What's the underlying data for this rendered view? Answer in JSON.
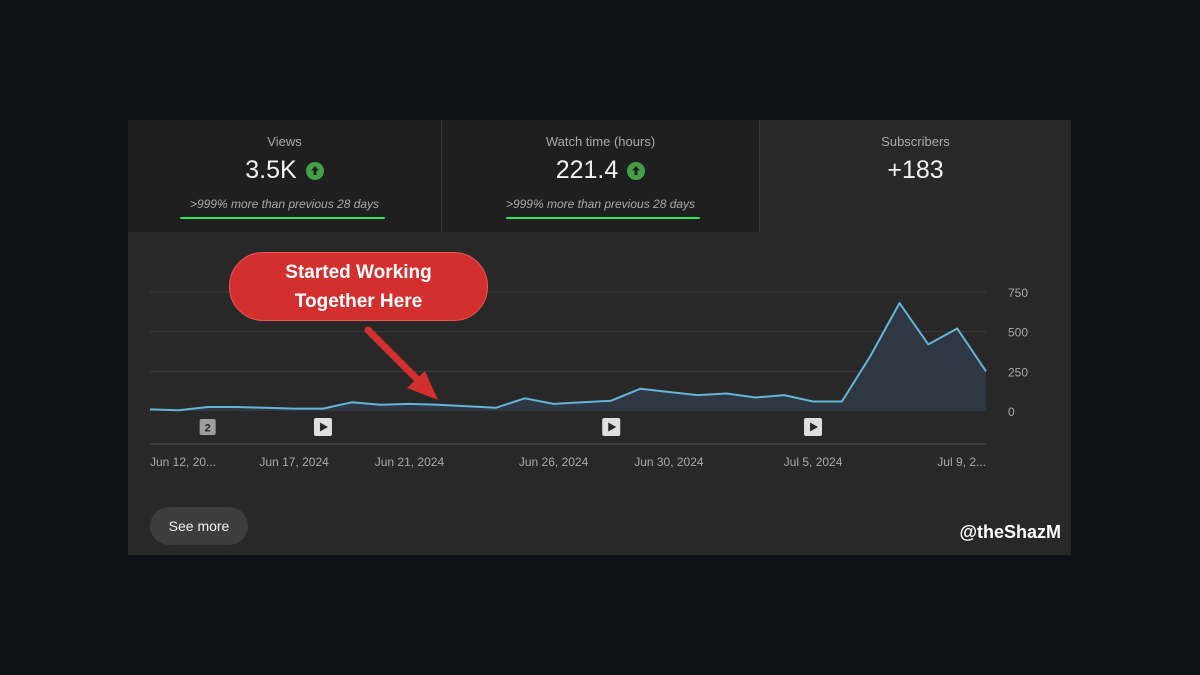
{
  "cards": [
    {
      "label": "Views",
      "value": "3.5K",
      "trend_icon": "arrow-up-icon",
      "note": ">999% more than previous 28 days"
    },
    {
      "label": "Watch time (hours)",
      "value": "221.4",
      "trend_icon": "arrow-up-icon",
      "note": ">999% more than previous 28 days"
    },
    {
      "label": "Subscribers",
      "value": "+183"
    }
  ],
  "callout": {
    "text": "Started Working\nTogether Here"
  },
  "buttons": {
    "see_more": "See more"
  },
  "watermark": "@theShazM",
  "colors": {
    "accent": "#64b5d9",
    "up": "#43a047",
    "callout": "#d32f2f",
    "underline": "#2ee65a"
  },
  "chart_data": {
    "type": "area",
    "x_labels": [
      "Jun 12, 20...",
      "Jun 17, 2024",
      "Jun 21, 2024",
      "Jun 26, 2024",
      "Jun 30, 2024",
      "Jul 5, 2024",
      "Jul 9, 2..."
    ],
    "x_label_days": [
      0,
      5,
      9,
      14,
      18,
      23,
      27
    ],
    "y_ticks": [
      0,
      250,
      500,
      750
    ],
    "ylim": [
      0,
      750
    ],
    "y_axis_position": "right",
    "grid": true,
    "series": [
      {
        "values": [
          10,
          5,
          25,
          25,
          20,
          15,
          15,
          55,
          40,
          45,
          40,
          30,
          20,
          80,
          45,
          55,
          65,
          140,
          120,
          100,
          110,
          85,
          100,
          60,
          60,
          350,
          680,
          420,
          520,
          250
        ]
      }
    ],
    "markers": [
      {
        "type": "badge",
        "text": "2",
        "day": 2
      },
      {
        "type": "play",
        "day": 6
      },
      {
        "type": "play",
        "day": 16
      },
      {
        "type": "play",
        "day": 23
      }
    ]
  }
}
